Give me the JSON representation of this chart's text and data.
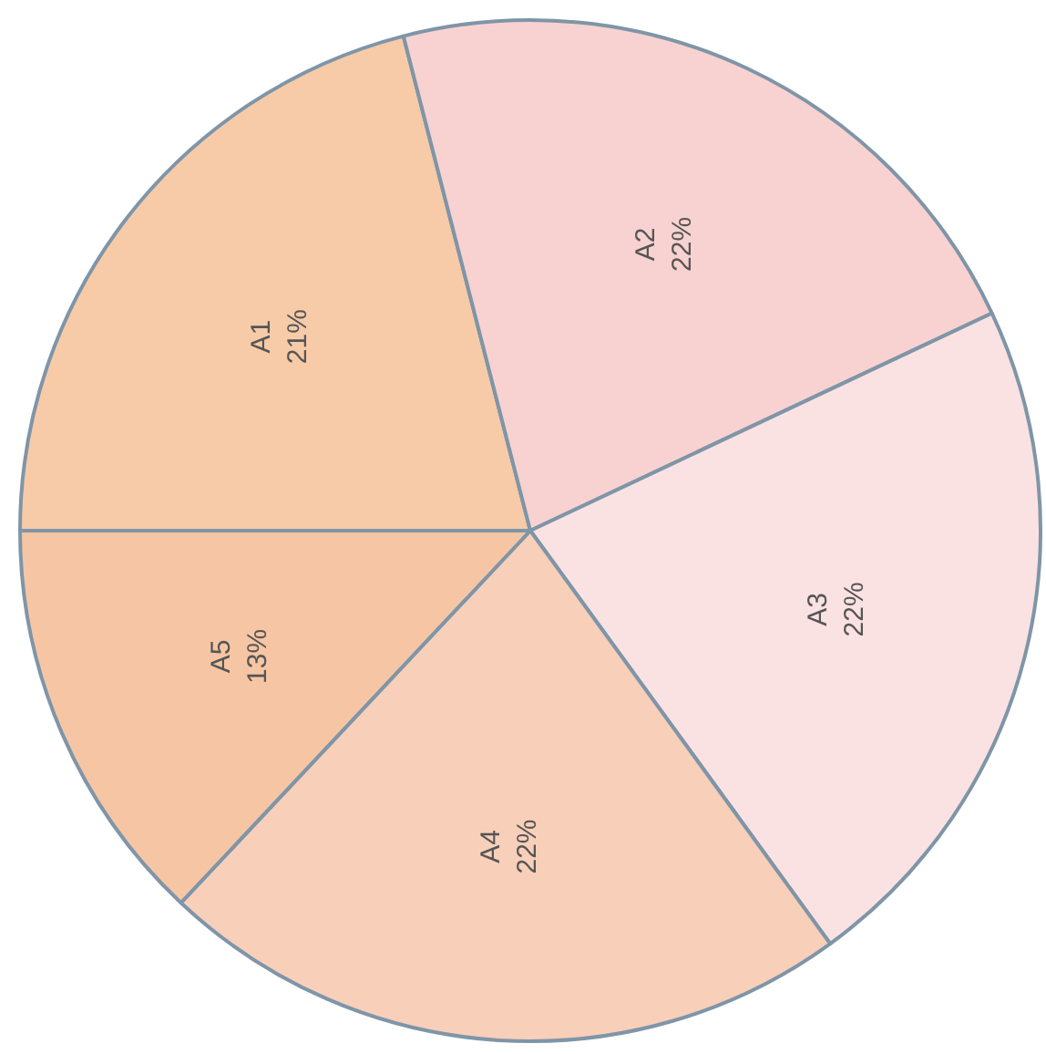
{
  "chart_data": {
    "type": "pie",
    "categories": [
      "A1",
      "A2",
      "A3",
      "A4",
      "A5"
    ],
    "values": [
      21,
      22,
      22,
      22,
      13
    ],
    "value_labels": [
      "21%",
      "22%",
      "22%",
      "22%",
      "13%"
    ],
    "colors": [
      "#f7cba8",
      "#f8d2d0",
      "#fbe2e2",
      "#f8cfb9",
      "#f6c6a4"
    ],
    "legend": false
  }
}
